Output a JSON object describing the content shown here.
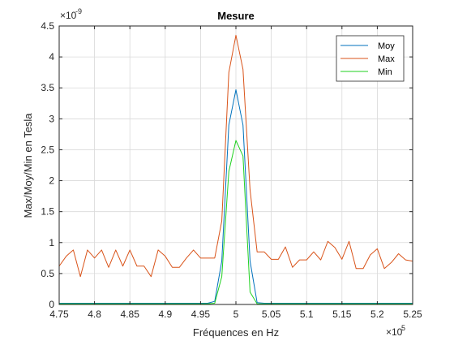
{
  "chart_data": {
    "type": "line",
    "title": "Mesure",
    "xlabel": "Fréquences en Hz",
    "ylabel": "Max/Moy/Min en Tesla",
    "x_multiplier_label": "×10",
    "x_multiplier_exp": "5",
    "y_multiplier_label": "×10",
    "y_multiplier_exp": "-9",
    "xlim": [
      4.75,
      5.25
    ],
    "ylim": [
      0,
      4.5
    ],
    "x_ticks": [
      4.75,
      4.8,
      4.85,
      4.9,
      4.95,
      5,
      5.05,
      5.1,
      5.15,
      5.2,
      5.25
    ],
    "x_tick_labels": [
      "4.75",
      "4.8",
      "4.85",
      "4.9",
      "4.95",
      "5",
      "5.05",
      "5.1",
      "5.15",
      "5.2",
      "5.25"
    ],
    "y_ticks": [
      0,
      0.5,
      1,
      1.5,
      2,
      2.5,
      3,
      3.5,
      4,
      4.5
    ],
    "y_tick_labels": [
      "0",
      "0.5",
      "1",
      "1.5",
      "2",
      "2.5",
      "3",
      "3.5",
      "4",
      "4.5"
    ],
    "grid": true,
    "legend_position": "top-right",
    "series": [
      {
        "name": "Moy",
        "color": "#0072BD",
        "points": [
          [
            4.75,
            0.02
          ],
          [
            4.76,
            0.02
          ],
          [
            4.77,
            0.02
          ],
          [
            4.78,
            0.02
          ],
          [
            4.79,
            0.02
          ],
          [
            4.8,
            0.02
          ],
          [
            4.81,
            0.02
          ],
          [
            4.82,
            0.02
          ],
          [
            4.83,
            0.02
          ],
          [
            4.84,
            0.02
          ],
          [
            4.85,
            0.02
          ],
          [
            4.86,
            0.02
          ],
          [
            4.87,
            0.02
          ],
          [
            4.88,
            0.02
          ],
          [
            4.89,
            0.02
          ],
          [
            4.9,
            0.02
          ],
          [
            4.91,
            0.02
          ],
          [
            4.92,
            0.02
          ],
          [
            4.93,
            0.02
          ],
          [
            4.94,
            0.02
          ],
          [
            4.95,
            0.02
          ],
          [
            4.96,
            0.02
          ],
          [
            4.97,
            0.05
          ],
          [
            4.98,
            0.7
          ],
          [
            4.99,
            2.9
          ],
          [
            5.0,
            3.47
          ],
          [
            5.01,
            2.9
          ],
          [
            5.02,
            0.7
          ],
          [
            5.03,
            0.03
          ],
          [
            5.04,
            0.02
          ],
          [
            5.05,
            0.02
          ],
          [
            5.06,
            0.02
          ],
          [
            5.07,
            0.02
          ],
          [
            5.08,
            0.02
          ],
          [
            5.09,
            0.02
          ],
          [
            5.1,
            0.02
          ],
          [
            5.11,
            0.02
          ],
          [
            5.12,
            0.02
          ],
          [
            5.13,
            0.02
          ],
          [
            5.14,
            0.02
          ],
          [
            5.15,
            0.02
          ],
          [
            5.16,
            0.02
          ],
          [
            5.17,
            0.02
          ],
          [
            5.18,
            0.02
          ],
          [
            5.19,
            0.02
          ],
          [
            5.2,
            0.02
          ],
          [
            5.21,
            0.02
          ],
          [
            5.22,
            0.02
          ],
          [
            5.23,
            0.02
          ],
          [
            5.24,
            0.02
          ],
          [
            5.25,
            0.02
          ]
        ]
      },
      {
        "name": "Max",
        "color": "#D95319",
        "points": [
          [
            4.75,
            0.62
          ],
          [
            4.76,
            0.78
          ],
          [
            4.77,
            0.88
          ],
          [
            4.78,
            0.45
          ],
          [
            4.79,
            0.88
          ],
          [
            4.8,
            0.75
          ],
          [
            4.81,
            0.88
          ],
          [
            4.82,
            0.6
          ],
          [
            4.83,
            0.88
          ],
          [
            4.84,
            0.62
          ],
          [
            4.85,
            0.88
          ],
          [
            4.86,
            0.62
          ],
          [
            4.87,
            0.62
          ],
          [
            4.88,
            0.45
          ],
          [
            4.89,
            0.88
          ],
          [
            4.9,
            0.78
          ],
          [
            4.91,
            0.6
          ],
          [
            4.92,
            0.6
          ],
          [
            4.93,
            0.75
          ],
          [
            4.94,
            0.88
          ],
          [
            4.95,
            0.75
          ],
          [
            4.96,
            0.75
          ],
          [
            4.97,
            0.75
          ],
          [
            4.98,
            1.35
          ],
          [
            4.99,
            3.75
          ],
          [
            5.0,
            4.35
          ],
          [
            5.01,
            3.8
          ],
          [
            5.02,
            1.85
          ],
          [
            5.03,
            0.85
          ],
          [
            5.04,
            0.85
          ],
          [
            5.05,
            0.73
          ],
          [
            5.06,
            0.73
          ],
          [
            5.07,
            0.93
          ],
          [
            5.08,
            0.6
          ],
          [
            5.09,
            0.72
          ],
          [
            5.1,
            0.72
          ],
          [
            5.11,
            0.85
          ],
          [
            5.12,
            0.72
          ],
          [
            5.13,
            1.02
          ],
          [
            5.14,
            0.92
          ],
          [
            5.15,
            0.73
          ],
          [
            5.16,
            1.02
          ],
          [
            5.17,
            0.58
          ],
          [
            5.18,
            0.58
          ],
          [
            5.19,
            0.8
          ],
          [
            5.2,
            0.9
          ],
          [
            5.21,
            0.58
          ],
          [
            5.22,
            0.68
          ],
          [
            5.23,
            0.82
          ],
          [
            5.24,
            0.72
          ],
          [
            5.25,
            0.7
          ]
        ]
      },
      {
        "name": "Min",
        "color": "#1FD11F",
        "points": [
          [
            4.75,
            0.01
          ],
          [
            4.76,
            0.01
          ],
          [
            4.77,
            0.01
          ],
          [
            4.78,
            0.01
          ],
          [
            4.79,
            0.01
          ],
          [
            4.8,
            0.01
          ],
          [
            4.81,
            0.01
          ],
          [
            4.82,
            0.01
          ],
          [
            4.83,
            0.01
          ],
          [
            4.84,
            0.01
          ],
          [
            4.85,
            0.01
          ],
          [
            4.86,
            0.01
          ],
          [
            4.87,
            0.01
          ],
          [
            4.88,
            0.01
          ],
          [
            4.89,
            0.01
          ],
          [
            4.9,
            0.01
          ],
          [
            4.91,
            0.01
          ],
          [
            4.92,
            0.01
          ],
          [
            4.93,
            0.01
          ],
          [
            4.94,
            0.01
          ],
          [
            4.95,
            0.01
          ],
          [
            4.96,
            0.01
          ],
          [
            4.97,
            0.02
          ],
          [
            4.98,
            0.45
          ],
          [
            4.99,
            2.15
          ],
          [
            5.0,
            2.65
          ],
          [
            5.01,
            2.4
          ],
          [
            5.02,
            0.2
          ],
          [
            5.03,
            0.01
          ],
          [
            5.04,
            0.01
          ],
          [
            5.05,
            0.01
          ],
          [
            5.06,
            0.01
          ],
          [
            5.07,
            0.01
          ],
          [
            5.08,
            0.01
          ],
          [
            5.09,
            0.01
          ],
          [
            5.1,
            0.01
          ],
          [
            5.11,
            0.01
          ],
          [
            5.12,
            0.01
          ],
          [
            5.13,
            0.01
          ],
          [
            5.14,
            0.01
          ],
          [
            5.15,
            0.01
          ],
          [
            5.16,
            0.01
          ],
          [
            5.17,
            0.01
          ],
          [
            5.18,
            0.01
          ],
          [
            5.19,
            0.01
          ],
          [
            5.2,
            0.01
          ],
          [
            5.21,
            0.01
          ],
          [
            5.22,
            0.01
          ],
          [
            5.23,
            0.01
          ],
          [
            5.24,
            0.01
          ],
          [
            5.25,
            0.01
          ]
        ]
      }
    ]
  }
}
